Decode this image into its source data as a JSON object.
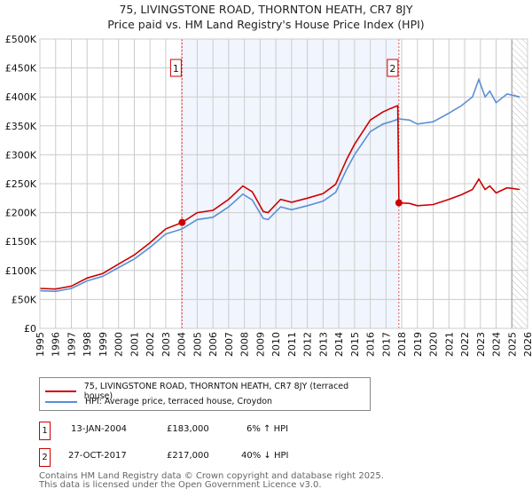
{
  "chart_data": {
    "type": "line",
    "title": "75, LIVINGSTONE ROAD, THORNTON HEATH, CR7 8JY",
    "subtitle": "Price paid vs. HM Land Registry's House Price Index (HPI)",
    "xlim": [
      1995,
      2026
    ],
    "ylim": [
      0,
      500000
    ],
    "x_ticks": [
      "1995",
      "1996",
      "1997",
      "1998",
      "1999",
      "2000",
      "2001",
      "2002",
      "2003",
      "2004",
      "2005",
      "2006",
      "2007",
      "2008",
      "2009",
      "2010",
      "2011",
      "2012",
      "2013",
      "2014",
      "2015",
      "2016",
      "2017",
      "2018",
      "2019",
      "2020",
      "2021",
      "2022",
      "2023",
      "2024",
      "2025",
      "2026"
    ],
    "y_ticks": [
      {
        "value": 0,
        "label": "£0"
      },
      {
        "value": 50000,
        "label": "£50K"
      },
      {
        "value": 100000,
        "label": "£100K"
      },
      {
        "value": 150000,
        "label": "£150K"
      },
      {
        "value": 200000,
        "label": "£200K"
      },
      {
        "value": 250000,
        "label": "£250K"
      },
      {
        "value": 300000,
        "label": "£300K"
      },
      {
        "value": 350000,
        "label": "£350K"
      },
      {
        "value": 400000,
        "label": "£400K"
      },
      {
        "value": 450000,
        "label": "£450K"
      },
      {
        "value": 500000,
        "label": "£500K"
      }
    ],
    "grid": true,
    "shaded_period": [
      2004.04,
      2017.82
    ],
    "forecast_hatch_from": 2025.0,
    "series": [
      {
        "name": "75, LIVINGSTONE ROAD, THORNTON HEATH, CR7 8JY (terraced house)",
        "color": "#cc0000",
        "x": [
          1995,
          1996,
          1997,
          1998,
          1999,
          2000,
          2001,
          2002,
          2003,
          2004.04,
          2005,
          2006,
          2007,
          2007.9,
          2008.5,
          2009.2,
          2009.5,
          2010.3,
          2011,
          2012,
          2013,
          2013.8,
          2014.5,
          2015,
          2016,
          2016.8,
          2017.3,
          2017.75,
          2017.82,
          2018.5,
          2019,
          2020,
          2021,
          2021.8,
          2022.5,
          2022.9,
          2023.3,
          2023.6,
          2024,
          2024.7,
          2025.5
        ],
        "y": [
          69000,
          68000,
          73000,
          87000,
          95000,
          111000,
          127000,
          148000,
          172000,
          183000,
          200000,
          204000,
          223000,
          246000,
          236000,
          202000,
          200000,
          223000,
          218000,
          225000,
          233000,
          249000,
          292000,
          318000,
          360000,
          374000,
          380000,
          385000,
          217000,
          216000,
          212000,
          214000,
          223000,
          231000,
          240000,
          258000,
          240000,
          246000,
          234000,
          243000,
          240000
        ]
      },
      {
        "name": "HPI: Average price, terraced house, Croydon",
        "color": "#5b8fd4",
        "x": [
          1995,
          1996,
          1997,
          1998,
          1999,
          2000,
          2001,
          2002,
          2003,
          2004.04,
          2005,
          2006,
          2007,
          2007.9,
          2008.5,
          2009.2,
          2009.5,
          2010.3,
          2011,
          2012,
          2013,
          2013.8,
          2014.5,
          2015,
          2016,
          2016.8,
          2017.3,
          2017.82,
          2018.5,
          2019,
          2020,
          2021,
          2021.8,
          2022.5,
          2022.9,
          2023.3,
          2023.6,
          2024,
          2024.7,
          2025.5
        ],
        "y": [
          65000,
          64000,
          69000,
          82000,
          90000,
          105000,
          120000,
          140000,
          163000,
          172000,
          188000,
          192000,
          210000,
          232000,
          222000,
          190000,
          188000,
          210000,
          205000,
          212000,
          220000,
          235000,
          275000,
          300000,
          340000,
          353000,
          357000,
          362000,
          360000,
          353000,
          357000,
          372000,
          385000,
          400000,
          430000,
          400000,
          410000,
          390000,
          405000,
          400000
        ]
      }
    ],
    "markers": [
      {
        "label": "1",
        "x": 2004.04,
        "y": 183000
      },
      {
        "label": "2",
        "x": 2017.82,
        "y": 217000
      }
    ]
  },
  "legend": {
    "property": "75, LIVINGSTONE ROAD, THORNTON HEATH, CR7 8JY (terraced house)",
    "hpi": "HPI: Average price, terraced house, Croydon"
  },
  "transactions": [
    {
      "num": "1",
      "date": "13-JAN-2004",
      "price": "£183,000",
      "hpi": "6% ↑ HPI"
    },
    {
      "num": "2",
      "date": "27-OCT-2017",
      "price": "£217,000",
      "hpi": "40% ↓ HPI"
    }
  ],
  "footer": {
    "line1": "Contains HM Land Registry data © Crown copyright and database right 2025.",
    "line2": "This data is licensed under the Open Government Licence v3.0."
  }
}
